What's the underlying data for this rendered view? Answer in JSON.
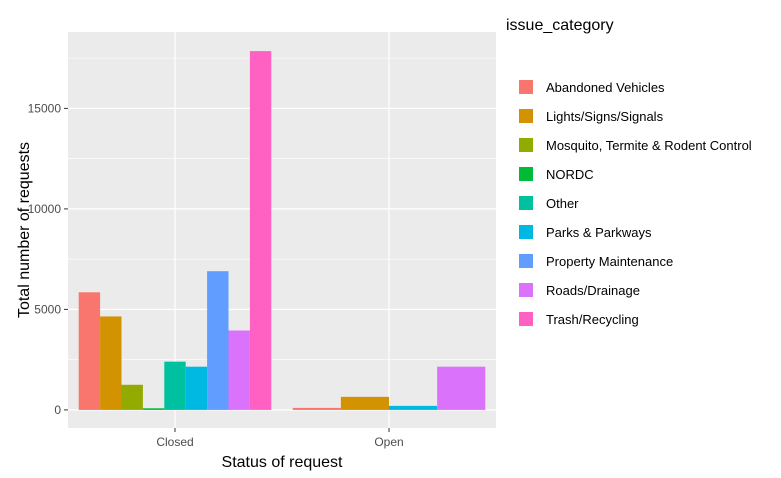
{
  "chart_data": {
    "type": "bar",
    "xlabel": "Status of request",
    "ylabel": "Total number of requests",
    "legend_title": "issue_category",
    "categories": [
      "Closed",
      "Open"
    ],
    "yticks": [
      0,
      5000,
      10000,
      15000
    ],
    "ytick_labels": [
      "0",
      "5000",
      "10000",
      "15000"
    ],
    "ylim": [
      -900,
      18800
    ],
    "grid": true,
    "legend_position": "right",
    "series": [
      {
        "name": "Abandoned Vehicles",
        "color": "#F8766D",
        "values": [
          5850,
          100
        ]
      },
      {
        "name": "Lights/Signs/Signals",
        "color": "#D39200",
        "values": [
          4650,
          650
        ]
      },
      {
        "name": "Mosquito, Termite & Rodent Control",
        "color": "#93AA00",
        "values": [
          1250,
          null
        ]
      },
      {
        "name": "NORDC",
        "color": "#00BA38",
        "values": [
          80,
          null
        ]
      },
      {
        "name": "Other",
        "color": "#00C19F",
        "values": [
          2400,
          null
        ]
      },
      {
        "name": "Parks & Parkways",
        "color": "#00B9E3",
        "values": [
          2150,
          200
        ]
      },
      {
        "name": "Property Maintenance",
        "color": "#619CFF",
        "values": [
          6900,
          null
        ]
      },
      {
        "name": "Roads/Drainage",
        "color": "#DB72FB",
        "values": [
          3950,
          2150
        ]
      },
      {
        "name": "Trash/Recycling",
        "color": "#FF61C3",
        "values": [
          17850,
          null
        ]
      }
    ]
  }
}
